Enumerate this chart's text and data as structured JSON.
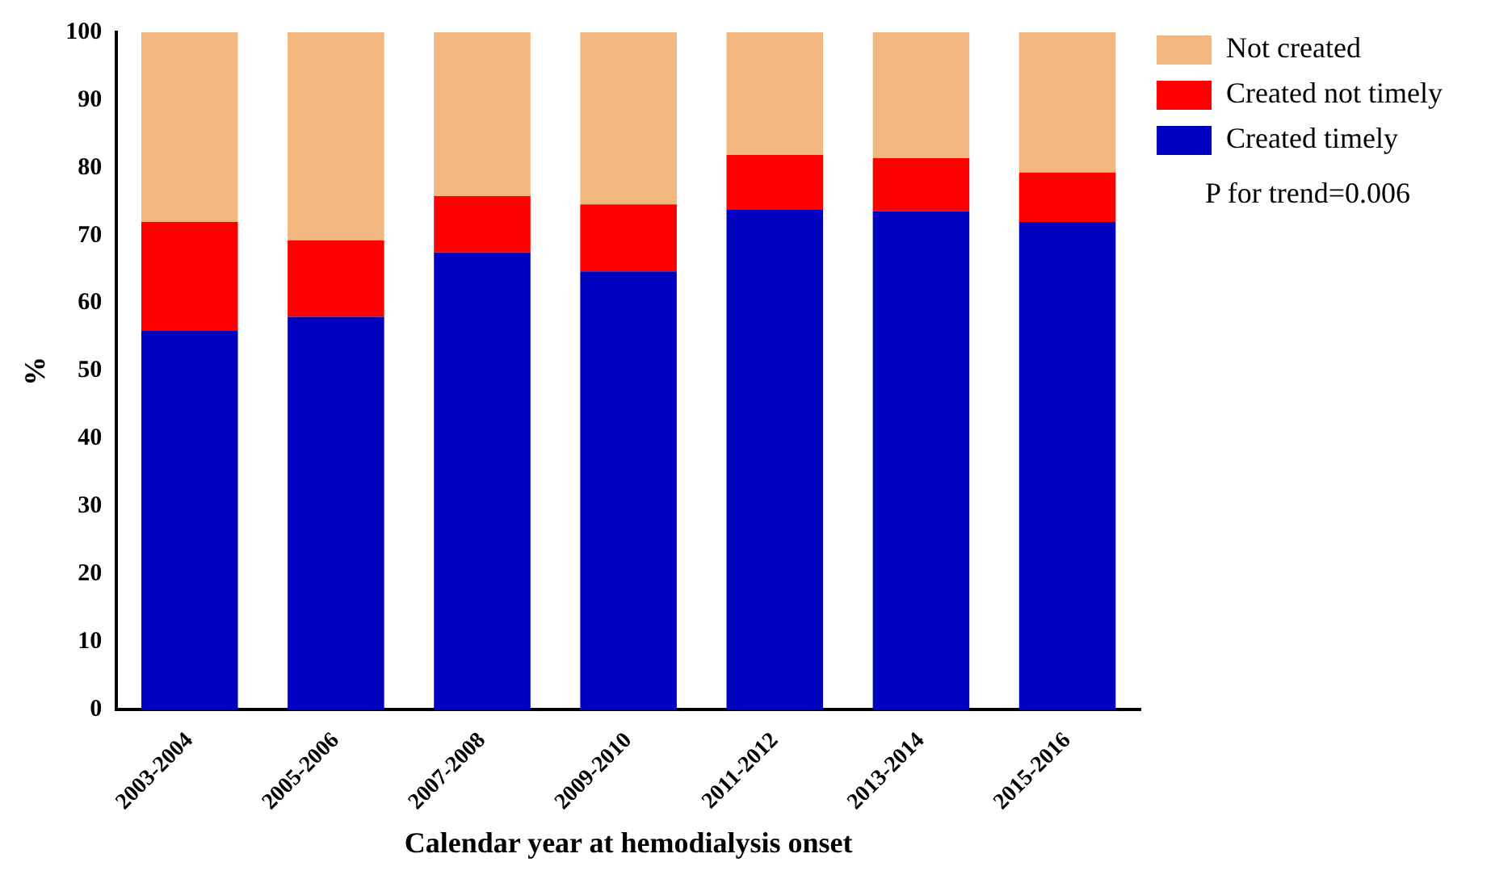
{
  "chart_data": {
    "type": "bar",
    "stacked": true,
    "xlabel": "Calendar year at hemodialysis onset",
    "ylabel": "%",
    "categories": [
      "2003-2004",
      "2005-2006",
      "2007-2008",
      "2009-2010",
      "2011-2012",
      "2013-2014",
      "2015-2016"
    ],
    "series": [
      {
        "name": "Created timely",
        "color": "#0000c0",
        "values": [
          56,
          58,
          67.5,
          64.7,
          73.8,
          73.6,
          72
        ]
      },
      {
        "name": "Created not timely",
        "color": "#ff0000",
        "values": [
          16,
          11.3,
          8.3,
          9.9,
          8.1,
          7.8,
          7.3
        ]
      },
      {
        "name": "Not created",
        "color": "#f2b77e",
        "values": [
          28,
          30.7,
          24.2,
          25.4,
          18.1,
          18.6,
          20.7
        ]
      }
    ],
    "ylim": [
      0,
      100
    ],
    "yticks": [
      0,
      10,
      20,
      30,
      40,
      50,
      60,
      70,
      80,
      90,
      100
    ],
    "grid": false,
    "legend": "top right",
    "annotations": [
      "P for trend=0.006"
    ]
  }
}
